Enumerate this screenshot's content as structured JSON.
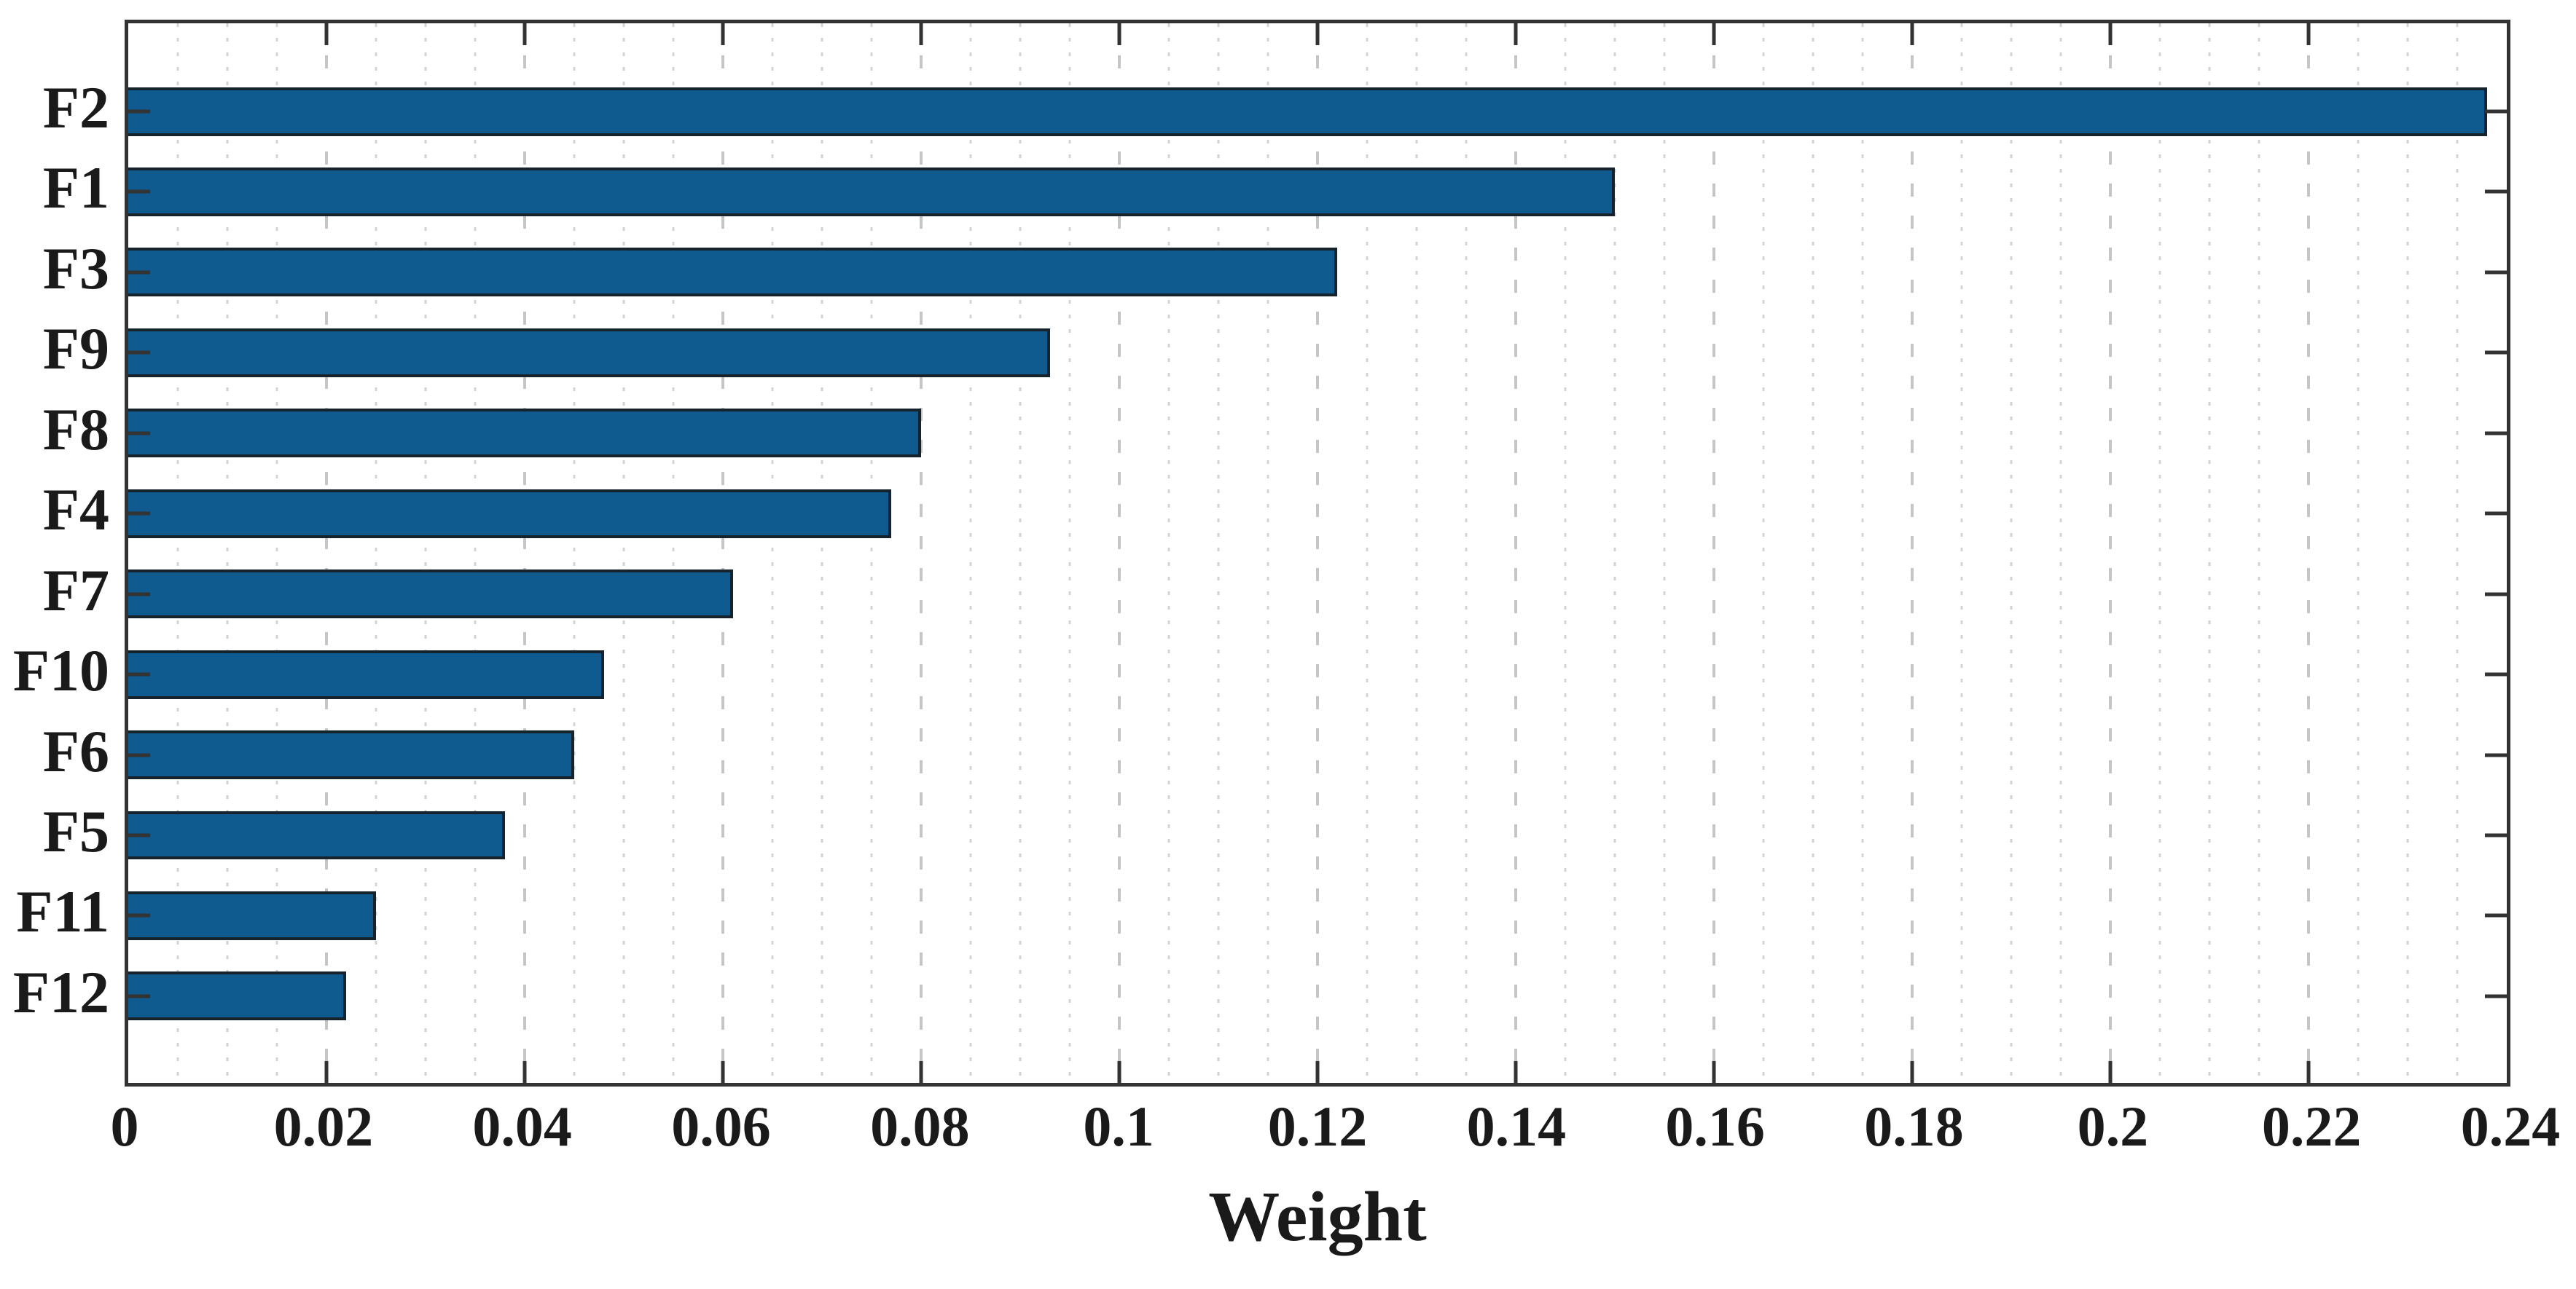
{
  "chart_data": {
    "type": "bar",
    "orientation": "horizontal",
    "title": "",
    "xlabel": "Weight",
    "ylabel": "",
    "categories": [
      "F2",
      "F1",
      "F3",
      "F9",
      "F8",
      "F4",
      "F7",
      "F10",
      "F6",
      "F5",
      "F11",
      "F12"
    ],
    "values": [
      0.238,
      0.15,
      0.122,
      0.093,
      0.08,
      0.077,
      0.061,
      0.048,
      0.045,
      0.038,
      0.025,
      0.022
    ],
    "series": [
      {
        "name": "Weight",
        "values": [
          0.238,
          0.15,
          0.122,
          0.093,
          0.08,
          0.077,
          0.061,
          0.048,
          0.045,
          0.038,
          0.025,
          0.022
        ]
      }
    ],
    "xlim": [
      0,
      0.24
    ],
    "x_tick_values": [
      0,
      0.02,
      0.04,
      0.06,
      0.08,
      0.1,
      0.12,
      0.14,
      0.16,
      0.18,
      0.2,
      0.22,
      0.24
    ],
    "x_tick_labels": [
      "0",
      "0.02",
      "0.04",
      "0.06",
      "0.08",
      "0.1",
      "0.12",
      "0.14",
      "0.16",
      "0.18",
      "0.2",
      "0.22",
      "0.24"
    ],
    "x_minor_step": 0.005,
    "grid": "x-major-dashed, x-minor-dotted, box on, ticks inward on all four sides",
    "legend": "none",
    "bar_color": "#0f5a8f",
    "bar_edge_color": "#16222c",
    "axis_color": "#333333",
    "major_grid_color": "#c6c6c6",
    "minor_grid_color": "#d3d3d3",
    "text_color": "#1a1a1a",
    "background": "#ffffff"
  }
}
